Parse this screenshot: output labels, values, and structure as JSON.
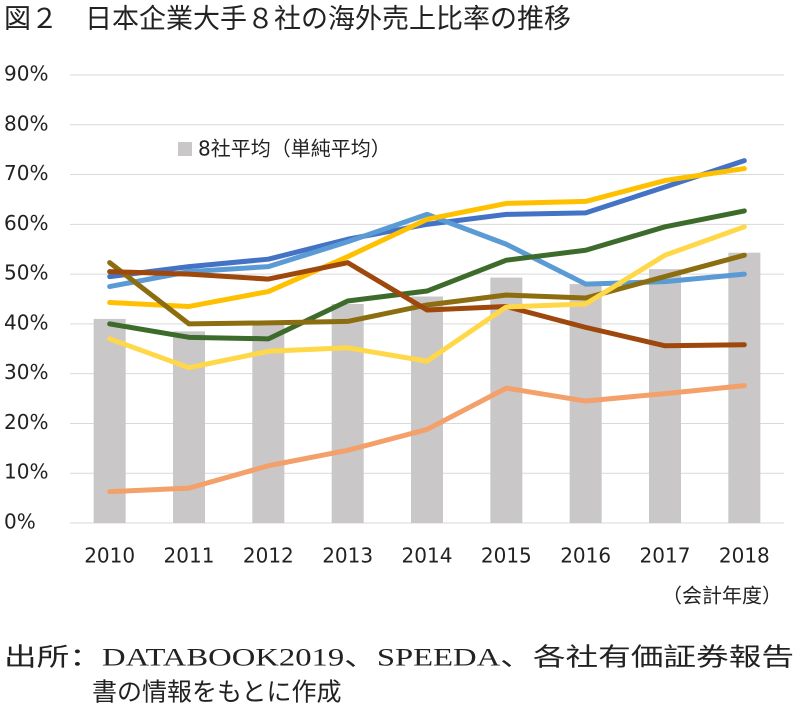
{
  "chart_data": {
    "type": "bar",
    "title": "図２　日本企業大手８社の海外売上比率の推移",
    "x_label": "（会計年度）",
    "source": [
      "出所：DATABOOK2019、SPEEDA、各社有価証券報告",
      "書の情報をもとに作成"
    ],
    "categories": [
      "2010",
      "2011",
      "2012",
      "2013",
      "2014",
      "2015",
      "2016",
      "2017",
      "2018"
    ],
    "ylim": [
      0,
      90
    ],
    "yticks": [
      {
        "value": 0,
        "label": "0%"
      },
      {
        "value": 10,
        "label": "10%"
      },
      {
        "value": 20,
        "label": "20%"
      },
      {
        "value": 30,
        "label": "30%"
      },
      {
        "value": 40,
        "label": "40%"
      },
      {
        "value": 50,
        "label": "50%"
      },
      {
        "value": 60,
        "label": "60%"
      },
      {
        "value": 70,
        "label": "70%"
      },
      {
        "value": 80,
        "label": "80%"
      },
      {
        "value": 90,
        "label": "90%"
      }
    ],
    "grid": true,
    "series": [
      {
        "name": "8社平均（単純平均）",
        "type": "bar",
        "color": "#c9c7c8",
        "values": [
          41,
          38.5,
          40.5,
          44,
          45.5,
          49.3,
          48,
          51,
          54.3
        ]
      },
      {
        "type": "line",
        "color": "#4472c4",
        "values": [
          49.5,
          51.5,
          53,
          57,
          60,
          62,
          62.3,
          67.5,
          72.8
        ]
      },
      {
        "type": "line",
        "color": "#5b9bd5",
        "values": [
          47.5,
          50.5,
          51.5,
          56.5,
          62,
          56,
          48,
          48.5,
          50
        ]
      },
      {
        "type": "line",
        "color": "#ffc000",
        "values": [
          44.3,
          43.5,
          46.5,
          53.5,
          61,
          64.2,
          64.6,
          68.8,
          71.2
        ]
      },
      {
        "type": "line",
        "color": "#3d6b2b",
        "values": [
          40,
          37.3,
          37,
          44.6,
          46.6,
          52.8,
          54.8,
          59.5,
          62.7
        ]
      },
      {
        "type": "line",
        "color": "#8c6d0f",
        "values": [
          52.3,
          40,
          40.2,
          40.5,
          43.8,
          45.8,
          45.2,
          49.5,
          53.8
        ]
      },
      {
        "type": "line",
        "color": "#9e480e",
        "values": [
          50.5,
          50,
          49,
          52.3,
          42.8,
          43.5,
          39.3,
          35.6,
          35.8
        ]
      },
      {
        "type": "line",
        "color": "#ffd84a",
        "values": [
          37,
          31.2,
          34.5,
          35.2,
          32.5,
          43.4,
          44,
          53.8,
          59.5
        ]
      },
      {
        "type": "line",
        "color": "#f4a06b",
        "values": [
          6.3,
          7,
          11.5,
          14.6,
          18.8,
          27.1,
          24.5,
          26,
          27.6
        ]
      }
    ]
  }
}
